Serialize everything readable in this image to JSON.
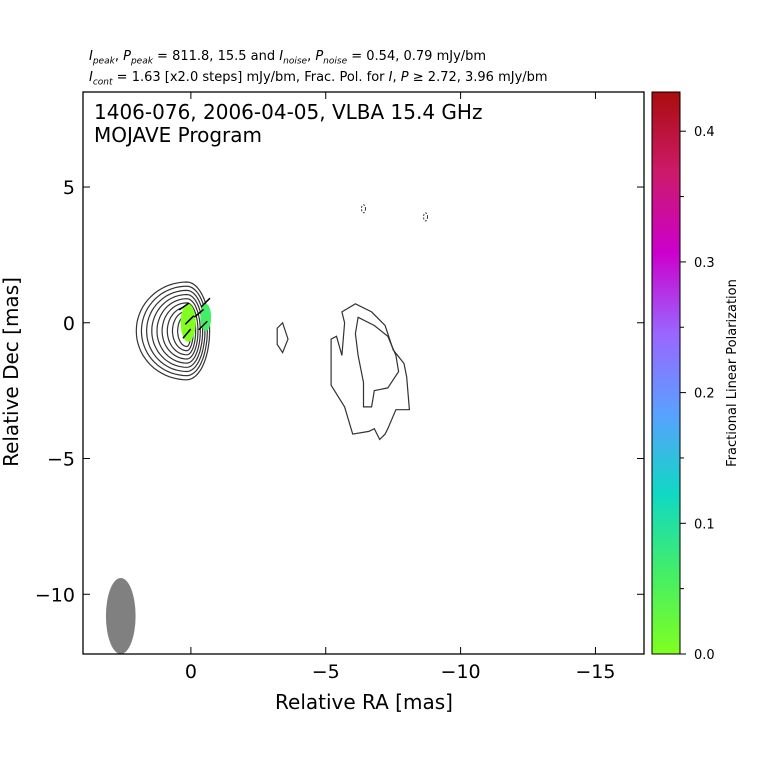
{
  "header": {
    "line1": {
      "ipeak_sub": "peak",
      "ppeak_sub": "peak",
      "ipeak_values": "811.8, 15.5",
      "and": "and",
      "inoise_sub": "noise",
      "pnoise_sub": "noise",
      "noise_values": "0.54, 0.79 mJy/bm"
    },
    "line2": {
      "icont_sub": "cont",
      "icont_text": "= 1.63 [x2.0 steps] mJy/bm, Frac. Pol. for",
      "ge_values": "2.72, 3.96 mJy/bm"
    }
  },
  "chart_data": {
    "type": "contour",
    "annotation_lines": [
      "1406-076, 2006-04-05, VLBA 15.4 GHz",
      "MOJAVE Program"
    ],
    "xlabel": "Relative RA [mas]",
    "ylabel": "Relative Dec [mas]",
    "xlim": [
      4.0,
      -16.8
    ],
    "ylim": [
      -12.2,
      8.5
    ],
    "x_ticks": [
      0,
      -5,
      -10,
      -15
    ],
    "x_tick_labels": [
      "0",
      "−5",
      "−10",
      "−15"
    ],
    "y_ticks": [
      5,
      0,
      -5,
      -10
    ],
    "y_tick_labels": [
      "5",
      "0",
      "−5",
      "−10"
    ],
    "contour_levels_mJy": [
      1.63,
      3.26,
      6.52,
      13.04,
      26.08,
      52.16,
      104.32,
      208.64,
      417.28
    ],
    "core_component": {
      "ra": 0.15,
      "dec": -0.3,
      "ra_axis": 0.75,
      "dec_axis": 1.8,
      "pa_deg": -8
    },
    "extended_contours": [
      {
        "name": "knot",
        "points": [
          [
            -3.4,
            0.0
          ],
          [
            -3.6,
            -0.6
          ],
          [
            -3.4,
            -1.1
          ],
          [
            -3.2,
            -0.8
          ],
          [
            -3.2,
            -0.2
          ]
        ]
      },
      {
        "name": "jet-region",
        "points": [
          [
            -5.6,
            0.4
          ],
          [
            -6.1,
            0.7
          ],
          [
            -6.7,
            0.4
          ],
          [
            -7.2,
            -0.1
          ],
          [
            -7.5,
            -1.0
          ],
          [
            -7.9,
            -1.5
          ],
          [
            -8.0,
            -2.0
          ],
          [
            -8.1,
            -3.2
          ],
          [
            -7.6,
            -3.2
          ],
          [
            -7.3,
            -3.9
          ],
          [
            -7.2,
            -4.1
          ],
          [
            -7.0,
            -4.3
          ],
          [
            -6.8,
            -3.9
          ],
          [
            -6.6,
            -4.0
          ],
          [
            -6.0,
            -4.1
          ],
          [
            -5.7,
            -3.1
          ],
          [
            -5.2,
            -2.3
          ],
          [
            -5.2,
            -0.6
          ],
          [
            -5.4,
            -0.5
          ],
          [
            -5.6,
            -1.2
          ],
          [
            -5.7,
            0.0
          ]
        ]
      },
      {
        "name": "inner-region",
        "points": [
          [
            -6.2,
            0.2
          ],
          [
            -6.8,
            -0.1
          ],
          [
            -7.3,
            -0.5
          ],
          [
            -7.6,
            -1.2
          ],
          [
            -7.7,
            -1.8
          ],
          [
            -7.3,
            -2.4
          ],
          [
            -6.8,
            -2.5
          ],
          [
            -6.7,
            -3.1
          ],
          [
            -6.4,
            -3.1
          ],
          [
            -6.4,
            -2.2
          ],
          [
            -6.2,
            -1.2
          ],
          [
            -6.1,
            -0.4
          ]
        ]
      }
    ],
    "negative_contours": [
      {
        "ra": -6.4,
        "dec": 4.2
      },
      {
        "ra": -8.7,
        "dec": 3.9
      }
    ],
    "polarization_patches": [
      {
        "ra": 0.1,
        "dec": 0.0,
        "ra_axis": 0.28,
        "dec_axis": 0.7,
        "frac_pol": 0.02
      },
      {
        "ra": -0.55,
        "dec": 0.2,
        "ra_axis": 0.2,
        "dec_axis": 0.5,
        "frac_pol": 0.05
      }
    ],
    "evpa_ticks": [
      {
        "ra": 0.05,
        "dec": 0.1,
        "angle_deg": 45
      },
      {
        "ra": -0.3,
        "dec": 0.35,
        "angle_deg": 40
      },
      {
        "ra": 0.15,
        "dec": -0.4,
        "angle_deg": 50
      },
      {
        "ra": -0.55,
        "dec": 0.75,
        "angle_deg": 45
      },
      {
        "ra": -0.45,
        "dec": -0.1,
        "angle_deg": 45
      },
      {
        "ra": 0.25,
        "dec": 0.6,
        "angle_deg": 35
      }
    ],
    "beam": {
      "ra": 2.6,
      "dec": -10.8,
      "major_mas": 1.4,
      "minor_mas": 0.55,
      "pa_deg": 0
    },
    "colorbar": {
      "label": "Fractional Linear Polarization",
      "range": [
        0.0,
        0.43
      ],
      "ticks": [
        0.0,
        0.1,
        0.2,
        0.3,
        0.4
      ],
      "tick_labels": [
        "0.0",
        "0.1",
        "0.2",
        "0.3",
        "0.4"
      ],
      "colormap": [
        "#80ff20",
        "#44ee66",
        "#10d8c4",
        "#5aa0ff",
        "#9a66ff",
        "#cc00cc",
        "#cc1a6a",
        "#aa0d0d"
      ]
    },
    "colors": {
      "contour": "#333333",
      "beam": "#808080",
      "evpa": "#000000"
    }
  }
}
